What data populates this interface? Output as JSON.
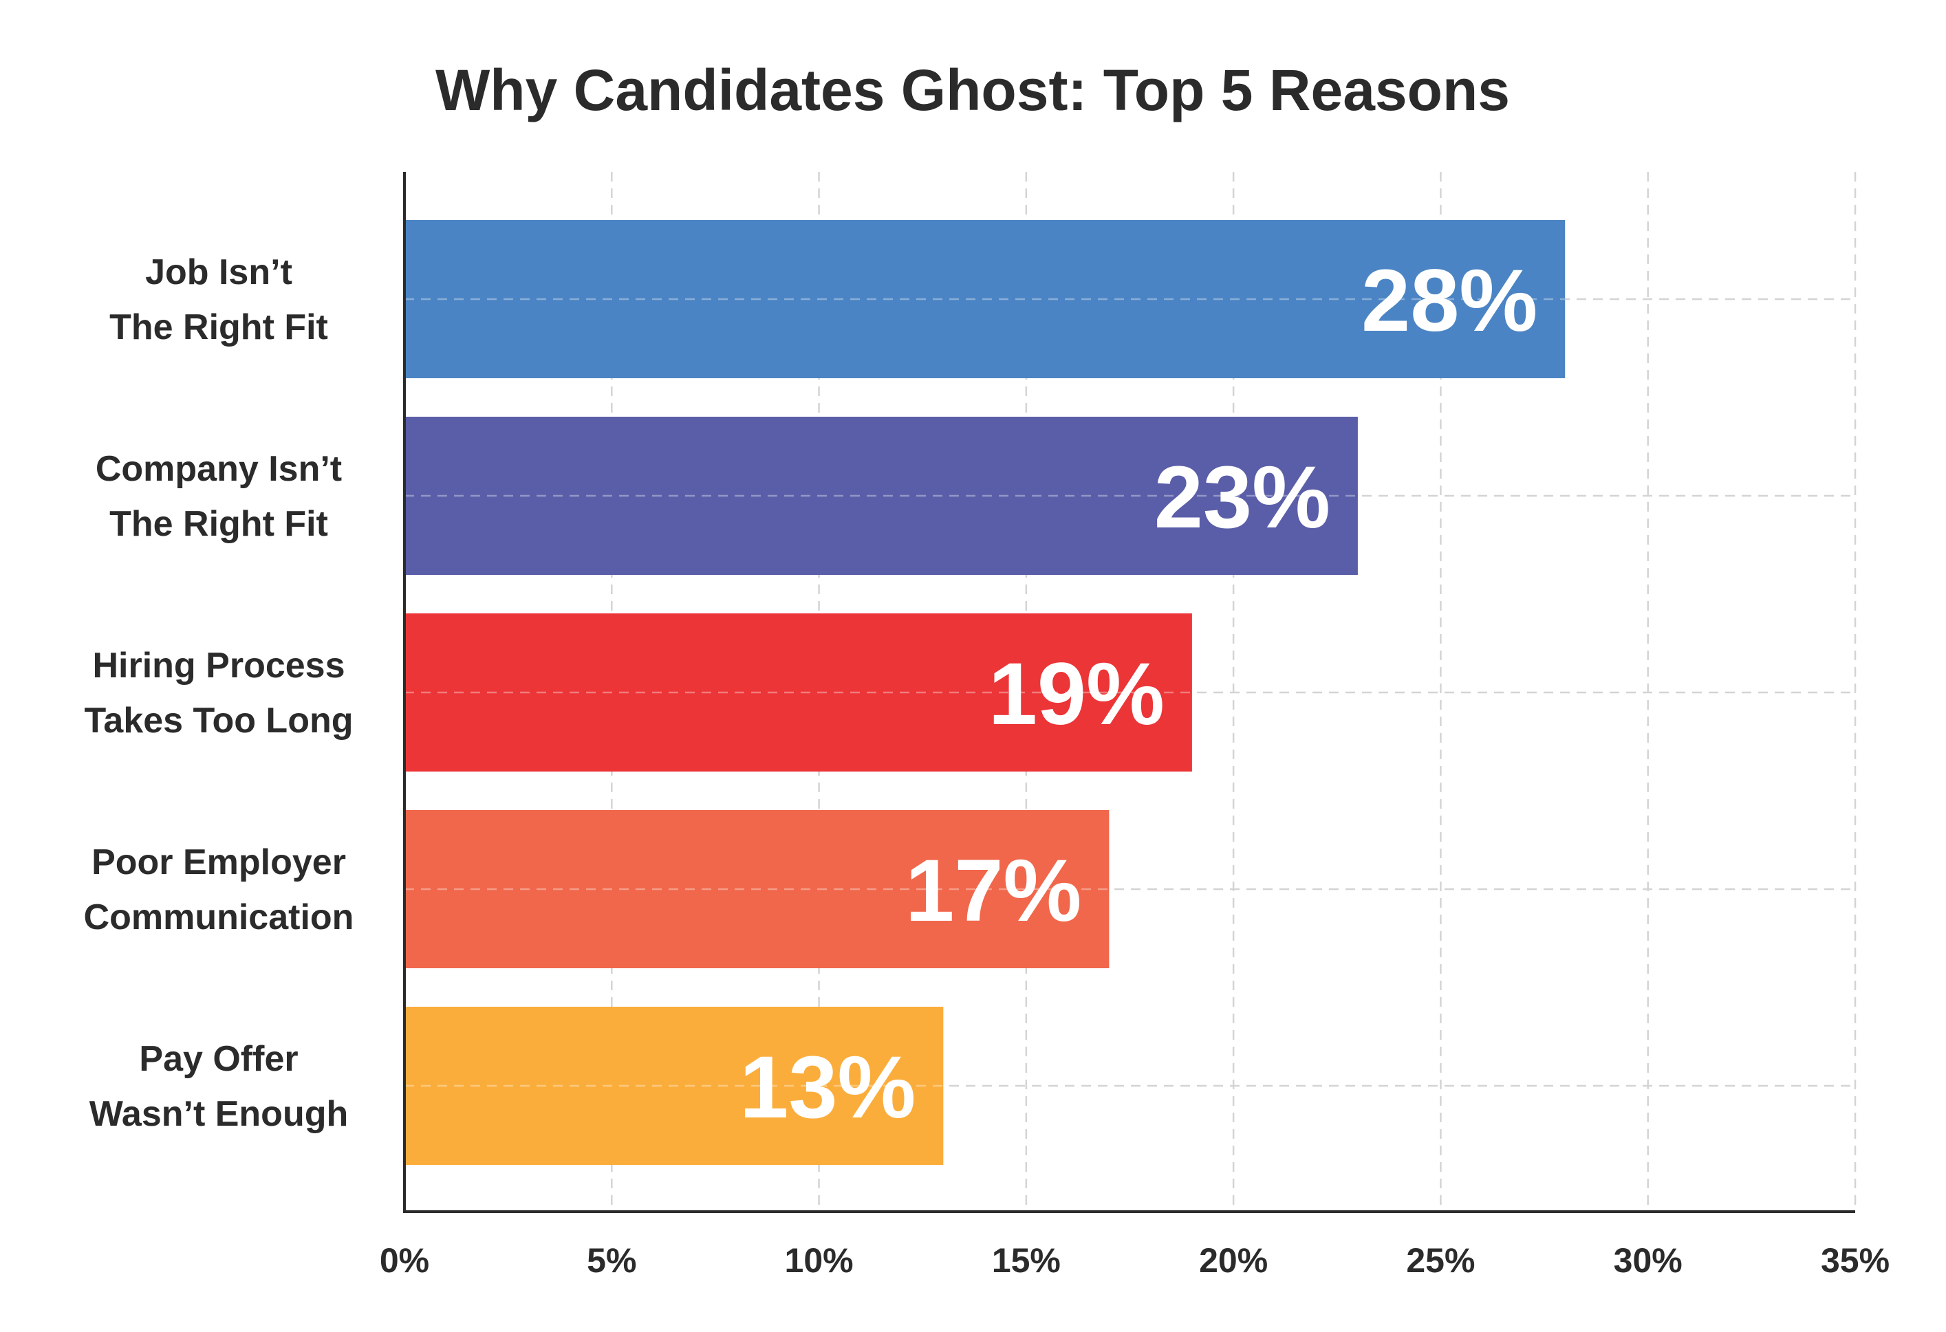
{
  "chart_data": {
    "type": "bar",
    "orientation": "horizontal",
    "title": "Why Candidates Ghost: Top 5 Reasons",
    "xlabel": "",
    "ylabel": "",
    "xlim": [
      0,
      35
    ],
    "ticks": [
      "0%",
      "5%",
      "10%",
      "15%",
      "20%",
      "25%",
      "30%",
      "35%"
    ],
    "tick_values": [
      0,
      5,
      10,
      15,
      20,
      25,
      30,
      35
    ],
    "grid": true,
    "categories": [
      [
        "Job Isn’t",
        "The Right Fit"
      ],
      [
        "Company Isn’t",
        "The Right Fit"
      ],
      [
        "Hiring Process",
        "Takes Too Long"
      ],
      [
        "Poor Employer",
        "Communication"
      ],
      [
        "Pay Offer",
        "Wasn’t Enough"
      ]
    ],
    "values": [
      28,
      23,
      19,
      17,
      13
    ],
    "value_labels": [
      "28%",
      "23%",
      "19%",
      "17%",
      "13%"
    ],
    "colors": [
      "#4a84c4",
      "#5a5ea8",
      "#ec3537",
      "#f1674b",
      "#fbad3c"
    ]
  }
}
